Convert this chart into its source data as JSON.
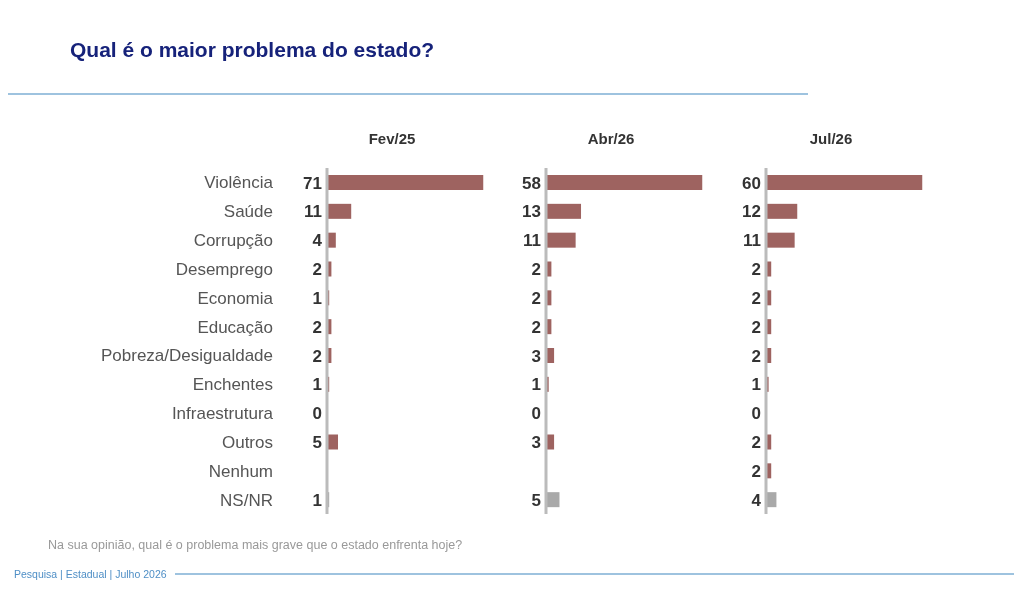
{
  "chart_data": [
    {
      "type": "bar",
      "orientation": "horizontal",
      "title": "Qual é o maior problema do estado?",
      "subtitle": "Fev/25",
      "categories": [
        "Violência",
        "Saúde",
        "Corrupção",
        "Desemprego",
        "Economia",
        "Educação",
        "Pobreza/Desigualdade",
        "Enchentes",
        "Infraestrutura",
        "Outros",
        "Nenhum",
        "NS/NR"
      ],
      "values": [
        71,
        11,
        4,
        2,
        1,
        2,
        2,
        1,
        0,
        5,
        null,
        1
      ],
      "colors": [
        "#9e6360",
        "#9e6360",
        "#9e6360",
        "#9e6360",
        "#9e6360",
        "#9e6360",
        "#9e6360",
        "#9e6360",
        "#9e6360",
        "#9e6360",
        null,
        "#a9a9a9"
      ],
      "data_labels": true,
      "tick_labels": "y",
      "annotations": [
        "Na sua opinião, qual é o problema mais grave que o estado enfrenta hoje?",
        "Pesquisa | Estadual | Julho 2026"
      ]
    },
    {
      "type": "bar",
      "orientation": "horizontal",
      "subtitle": "Abr/26",
      "categories": [
        null,
        null,
        null,
        null,
        null,
        null,
        null,
        null,
        null,
        null,
        null,
        null
      ],
      "values": [
        58,
        13,
        11,
        2,
        2,
        2,
        3,
        1,
        0,
        3,
        null,
        5
      ],
      "colors": [
        "#9e6360",
        "#9e6360",
        "#9e6360",
        "#9e6360",
        "#9e6360",
        "#9e6360",
        "#9e6360",
        "#9e6360",
        "#9e6360",
        "#9e6360",
        null,
        "#a9a9a9"
      ],
      "data_labels": true,
      "tick_labels": false
    },
    {
      "type": "bar",
      "orientation": "horizontal",
      "subtitle": "Jul/26",
      "categories": [
        null,
        null,
        null,
        null,
        null,
        null,
        null,
        null,
        null,
        null,
        null,
        null
      ],
      "values": [
        60,
        12,
        11,
        2,
        2,
        2,
        2,
        1,
        0,
        2,
        2,
        4
      ],
      "colors": [
        "#9e6360",
        "#9e6360",
        "#9e6360",
        "#9e6360",
        "#9e6360",
        "#9e6360",
        "#9e6360",
        "#9e6360",
        "#9e6360",
        "#9e6360",
        "#9e6360",
        "#a9a9a9"
      ],
      "data_labels": true,
      "tick_labels": false
    }
  ]
}
